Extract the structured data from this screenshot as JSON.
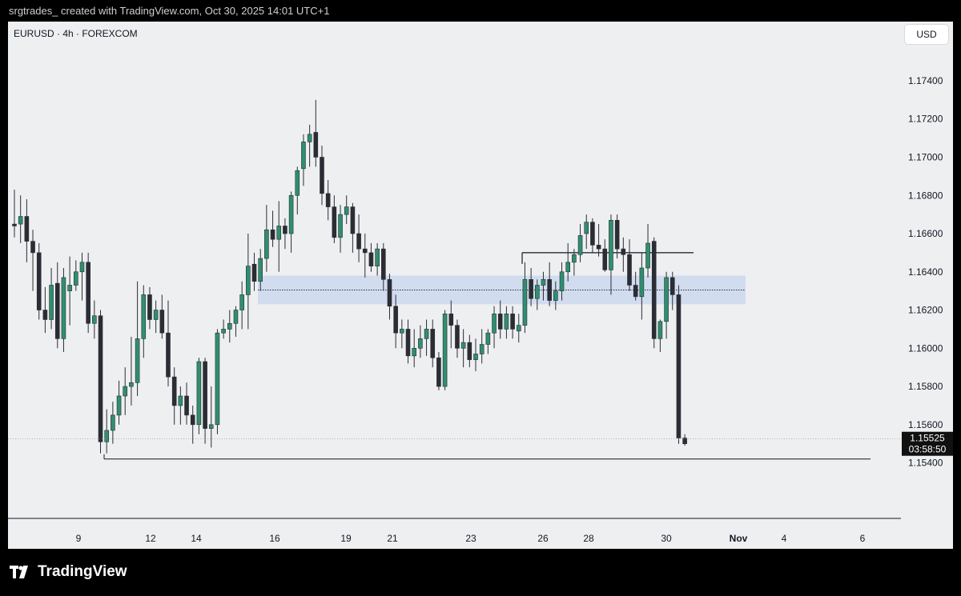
{
  "header": {
    "caption": "srgtrades_ created with TradingView.com, Oct 30, 2025 14:01 UTC+1"
  },
  "chart_header": {
    "symbol": "EURUSD · 4h · FOREXCOM",
    "currency_button": "USD"
  },
  "price_badge": {
    "price": "1.15525",
    "countdown": "03:58:50"
  },
  "footer": {
    "brand": "TradingView"
  },
  "colors": {
    "bull": "#2f8f6e",
    "bear": "#2a2d34",
    "background": "#eeeff1",
    "zone": "#ccd8ef",
    "frame": "#000000",
    "axis_text": "#131722"
  },
  "chart_data": {
    "type": "candlestick",
    "y_axis_ticks": [
      "1.17400",
      "1.17200",
      "1.17000",
      "1.16800",
      "1.16600",
      "1.16400",
      "1.16200",
      "1.16000",
      "1.15800",
      "1.15600",
      "1.15400"
    ],
    "ylim": [
      1.1526,
      1.1758
    ],
    "x_axis_ticks": [
      "9",
      "12",
      "14",
      "16",
      "19",
      "21",
      "23",
      "26",
      "28",
      "30",
      "Nov",
      "4",
      "6"
    ],
    "last_price": 1.15525,
    "annotations": {
      "support_line": 1.1542,
      "resistance_line": 1.165,
      "demand_zone": [
        1.1623,
        1.1638
      ],
      "zone_midline": 1.16305
    },
    "candles": [
      [
        1.1665,
        1.1683,
        1.1658,
        1.1664
      ],
      [
        1.1665,
        1.168,
        1.1655,
        1.1669
      ],
      [
        1.1669,
        1.1678,
        1.1645,
        1.1656
      ],
      [
        1.1656,
        1.1662,
        1.163,
        1.165
      ],
      [
        1.165,
        1.1655,
        1.1615,
        1.162
      ],
      [
        1.162,
        1.1632,
        1.1608,
        1.1615
      ],
      [
        1.1615,
        1.1642,
        1.161,
        1.1633
      ],
      [
        1.1634,
        1.1645,
        1.16,
        1.1605
      ],
      [
        1.1605,
        1.1642,
        1.1598,
        1.1637
      ],
      [
        1.163,
        1.1648,
        1.1612,
        1.1633
      ],
      [
        1.1633,
        1.1646,
        1.163,
        1.164
      ],
      [
        1.164,
        1.165,
        1.1625,
        1.1645
      ],
      [
        1.1645,
        1.165,
        1.1608,
        1.1613
      ],
      [
        1.1613,
        1.1625,
        1.1605,
        1.1617
      ],
      [
        1.1617,
        1.162,
        1.1545,
        1.1551
      ],
      [
        1.1551,
        1.1568,
        1.1545,
        1.1557
      ],
      [
        1.1557,
        1.1572,
        1.155,
        1.1565
      ],
      [
        1.1565,
        1.1583,
        1.156,
        1.1575
      ],
      [
        1.1575,
        1.159,
        1.1565,
        1.158
      ],
      [
        1.158,
        1.1606,
        1.157,
        1.1582
      ],
      [
        1.1582,
        1.1635,
        1.1575,
        1.1605
      ],
      [
        1.1605,
        1.1633,
        1.1595,
        1.1628
      ],
      [
        1.1628,
        1.1632,
        1.161,
        1.1615
      ],
      [
        1.1615,
        1.1625,
        1.1608,
        1.162
      ],
      [
        1.162,
        1.1628,
        1.1605,
        1.1608
      ],
      [
        1.1608,
        1.1625,
        1.158,
        1.1585
      ],
      [
        1.1585,
        1.159,
        1.156,
        1.157
      ],
      [
        1.157,
        1.158,
        1.156,
        1.1575
      ],
      [
        1.1575,
        1.1582,
        1.156,
        1.1565
      ],
      [
        1.1565,
        1.157,
        1.155,
        1.156
      ],
      [
        1.156,
        1.1595,
        1.1555,
        1.1593
      ],
      [
        1.1593,
        1.1595,
        1.155,
        1.1558
      ],
      [
        1.1558,
        1.158,
        1.1548,
        1.156
      ],
      [
        1.156,
        1.161,
        1.1555,
        1.1608
      ],
      [
        1.1608,
        1.1615,
        1.1605,
        1.161
      ],
      [
        1.161,
        1.162,
        1.1603,
        1.1613
      ],
      [
        1.1613,
        1.1622,
        1.1606,
        1.162
      ],
      [
        1.162,
        1.1635,
        1.161,
        1.1628
      ],
      [
        1.1628,
        1.166,
        1.161,
        1.1643
      ],
      [
        1.1644,
        1.165,
        1.163,
        1.1635
      ],
      [
        1.1635,
        1.1652,
        1.163,
        1.1647
      ],
      [
        1.1647,
        1.1675,
        1.164,
        1.1662
      ],
      [
        1.1662,
        1.1672,
        1.1653,
        1.1657
      ],
      [
        1.1657,
        1.1677,
        1.164,
        1.1664
      ],
      [
        1.1664,
        1.1668,
        1.1652,
        1.166
      ],
      [
        1.166,
        1.1682,
        1.165,
        1.168
      ],
      [
        1.168,
        1.1695,
        1.167,
        1.1693
      ],
      [
        1.1694,
        1.1712,
        1.1685,
        1.1708
      ],
      [
        1.1708,
        1.1717,
        1.1695,
        1.1712
      ],
      [
        1.1713,
        1.173,
        1.1695,
        1.17
      ],
      [
        1.17,
        1.1706,
        1.1675,
        1.1681
      ],
      [
        1.1681,
        1.1688,
        1.1667,
        1.1674
      ],
      [
        1.1674,
        1.168,
        1.1655,
        1.1658
      ],
      [
        1.1658,
        1.1675,
        1.165,
        1.167
      ],
      [
        1.167,
        1.168,
        1.1665,
        1.1674
      ],
      [
        1.1674,
        1.1676,
        1.165,
        1.166
      ],
      [
        1.166,
        1.167,
        1.1645,
        1.1652
      ],
      [
        1.1652,
        1.166,
        1.1637,
        1.165
      ],
      [
        1.165,
        1.1655,
        1.164,
        1.1643
      ],
      [
        1.1643,
        1.1655,
        1.1638,
        1.1652
      ],
      [
        1.1652,
        1.1655,
        1.163,
        1.1636
      ],
      [
        1.1636,
        1.1639,
        1.1615,
        1.1622
      ],
      [
        1.1622,
        1.1628,
        1.16,
        1.1608
      ],
      [
        1.1608,
        1.1615,
        1.16,
        1.161
      ],
      [
        1.161,
        1.1615,
        1.1592,
        1.1596
      ],
      [
        1.1596,
        1.161,
        1.159,
        1.16
      ],
      [
        1.16,
        1.1612,
        1.1595,
        1.1605
      ],
      [
        1.1605,
        1.1615,
        1.1596,
        1.161
      ],
      [
        1.161,
        1.1615,
        1.159,
        1.1595
      ],
      [
        1.1595,
        1.1598,
        1.1578,
        1.158
      ],
      [
        1.158,
        1.162,
        1.1578,
        1.1618
      ],
      [
        1.1618,
        1.1625,
        1.16,
        1.1612
      ],
      [
        1.1612,
        1.1615,
        1.1595,
        1.16
      ],
      [
        1.16,
        1.161,
        1.159,
        1.1603
      ],
      [
        1.1603,
        1.1607,
        1.159,
        1.1594
      ],
      [
        1.1594,
        1.1605,
        1.1588,
        1.1597
      ],
      [
        1.1597,
        1.161,
        1.1592,
        1.1602
      ],
      [
        1.1602,
        1.161,
        1.1597,
        1.1608
      ],
      [
        1.1608,
        1.1622,
        1.16,
        1.1618
      ],
      [
        1.1618,
        1.1625,
        1.1605,
        1.161
      ],
      [
        1.161,
        1.1622,
        1.1605,
        1.1618
      ],
      [
        1.1618,
        1.1622,
        1.1605,
        1.161
      ],
      [
        1.1609,
        1.1618,
        1.1603,
        1.1612
      ],
      [
        1.1612,
        1.1645,
        1.1608,
        1.1636
      ],
      [
        1.1636,
        1.1642,
        1.1622,
        1.1626
      ],
      [
        1.1626,
        1.1636,
        1.162,
        1.1633
      ],
      [
        1.1633,
        1.164,
        1.1625,
        1.1636
      ],
      [
        1.1636,
        1.1645,
        1.1622,
        1.1625
      ],
      [
        1.1625,
        1.1635,
        1.162,
        1.163
      ],
      [
        1.163,
        1.1645,
        1.1625,
        1.164
      ],
      [
        1.164,
        1.1655,
        1.1635,
        1.1645
      ],
      [
        1.1645,
        1.1652,
        1.1638,
        1.1649
      ],
      [
        1.1649,
        1.1665,
        1.1645,
        1.1659
      ],
      [
        1.166,
        1.167,
        1.1652,
        1.1666
      ],
      [
        1.1666,
        1.1668,
        1.165,
        1.1654
      ],
      [
        1.1654,
        1.1665,
        1.1648,
        1.1652
      ],
      [
        1.1652,
        1.1657,
        1.164,
        1.1641
      ],
      [
        1.1641,
        1.167,
        1.1628,
        1.1667
      ],
      [
        1.1667,
        1.167,
        1.1647,
        1.1652
      ],
      [
        1.1652,
        1.1658,
        1.164,
        1.1649
      ],
      [
        1.1649,
        1.1657,
        1.163,
        1.1633
      ],
      [
        1.1633,
        1.164,
        1.1625,
        1.1627
      ],
      [
        1.1627,
        1.165,
        1.1615,
        1.1642
      ],
      [
        1.1642,
        1.1665,
        1.1637,
        1.1655
      ],
      [
        1.1656,
        1.1658,
        1.16,
        1.1605
      ],
      [
        1.1605,
        1.1615,
        1.1598,
        1.1614
      ],
      [
        1.1614,
        1.164,
        1.1605,
        1.1637
      ],
      [
        1.1637,
        1.164,
        1.162,
        1.1628
      ],
      [
        1.1628,
        1.1633,
        1.155,
        1.1553
      ],
      [
        1.1553,
        1.1555,
        1.1549,
        1.155
      ]
    ]
  }
}
